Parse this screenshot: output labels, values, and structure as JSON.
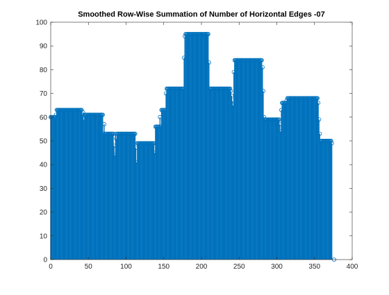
{
  "chart_data": {
    "type": "stem",
    "title": "Smoothed Row-Wise Summation of Number of Horizontal Edges -07",
    "xlabel": "",
    "ylabel": "",
    "xlim": [
      0,
      400
    ],
    "ylim": [
      0,
      100
    ],
    "xticks": [
      0,
      50,
      100,
      150,
      200,
      250,
      300,
      350,
      400
    ],
    "yticks": [
      0,
      10,
      20,
      30,
      40,
      50,
      60,
      70,
      80,
      90,
      100
    ],
    "grid": false,
    "color": "#0072BD",
    "marker": "circle-open",
    "segments": [
      {
        "x_start": 0,
        "x_end": 8,
        "value": 60
      },
      {
        "x_start": 8,
        "x_end": 42,
        "value": 63
      },
      {
        "x_start": 42,
        "x_end": 70,
        "value": 61
      },
      {
        "x_start": 70,
        "x_end": 84,
        "value": 53
      },
      {
        "x_start": 84,
        "x_end": 113,
        "value": 53
      },
      {
        "x_start": 113,
        "x_end": 138,
        "value": 49
      },
      {
        "x_start": 138,
        "x_end": 147,
        "value": 56
      },
      {
        "x_start": 147,
        "x_end": 154,
        "value": 63
      },
      {
        "x_start": 154,
        "x_end": 177,
        "value": 72
      },
      {
        "x_start": 177,
        "x_end": 210,
        "value": 95
      },
      {
        "x_start": 210,
        "x_end": 242,
        "value": 72
      },
      {
        "x_start": 242,
        "x_end": 282,
        "value": 84
      },
      {
        "x_start": 282,
        "x_end": 305,
        "value": 59
      },
      {
        "x_start": 305,
        "x_end": 313,
        "value": 66
      },
      {
        "x_start": 313,
        "x_end": 356,
        "value": 68
      },
      {
        "x_start": 356,
        "x_end": 374,
        "value": 50
      }
    ],
    "transitions": [
      {
        "x": 7,
        "value": 61
      },
      {
        "x": 43,
        "value": 62
      },
      {
        "x": 44,
        "value": 59
      },
      {
        "x": 71,
        "value": 57
      },
      {
        "x": 84,
        "value": 48
      },
      {
        "x": 85,
        "value": 44
      },
      {
        "x": 87,
        "value": 51
      },
      {
        "x": 113,
        "value": 47
      },
      {
        "x": 114,
        "value": 41
      },
      {
        "x": 138,
        "value": 45
      },
      {
        "x": 145,
        "value": 60
      },
      {
        "x": 153,
        "value": 70
      },
      {
        "x": 177,
        "value": 85
      },
      {
        "x": 178,
        "value": 94
      },
      {
        "x": 210,
        "value": 83
      },
      {
        "x": 211,
        "value": 72
      },
      {
        "x": 239,
        "value": 71
      },
      {
        "x": 240,
        "value": 69
      },
      {
        "x": 241,
        "value": 67
      },
      {
        "x": 242,
        "value": 65
      },
      {
        "x": 243,
        "value": 79
      },
      {
        "x": 281,
        "value": 81
      },
      {
        "x": 282,
        "value": 71
      },
      {
        "x": 283,
        "value": 60
      },
      {
        "x": 304,
        "value": 57
      },
      {
        "x": 305,
        "value": 54
      },
      {
        "x": 306,
        "value": 63
      },
      {
        "x": 313,
        "value": 67
      },
      {
        "x": 355,
        "value": 66
      },
      {
        "x": 356,
        "value": 59
      },
      {
        "x": 357,
        "value": 53
      },
      {
        "x": 358,
        "value": 50
      },
      {
        "x": 373,
        "value": 49
      },
      {
        "x": 376,
        "value": 0
      }
    ]
  }
}
